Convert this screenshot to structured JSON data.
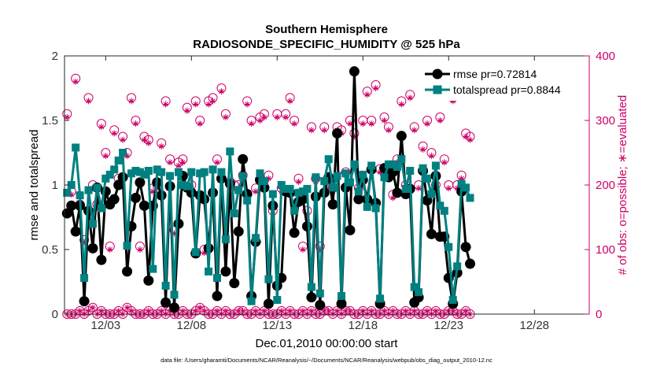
{
  "chart_data": {
    "type": "line",
    "title": "Southern Hemisphere",
    "subtitle": "RADIOSONDE_SPECIFIC_HUMIDITY @ 525 hPa",
    "xlabel": "Dec.01,2010 00:00:00 start",
    "ylabel": "rmse and totalspread",
    "y2label": "# of obs: o=possible; ∗=evaluated",
    "xlim": [
      0.6,
      31.2
    ],
    "ylim": [
      0,
      2
    ],
    "y2lim": [
      0,
      400
    ],
    "x_ticks": [
      3,
      8,
      13,
      18,
      23,
      28
    ],
    "x_tick_labels": [
      "12/03",
      "12/08",
      "12/13",
      "12/18",
      "12/23",
      "12/28"
    ],
    "y_ticks": [
      0,
      0.5,
      1,
      1.5,
      2
    ],
    "y_tick_labels": [
      "0",
      "0.5",
      "1",
      "1.5",
      "2"
    ],
    "y2_ticks": [
      0,
      100,
      200,
      300,
      400
    ],
    "y2_tick_labels": [
      "0",
      "100",
      "200",
      "300",
      "400"
    ],
    "grid": false,
    "legend_position": "top-right",
    "x_start": 0.75,
    "x_step": 0.25,
    "series": [
      {
        "name": "rmse pr=0.72814",
        "color": "#000000",
        "marker": "circle",
        "axis": "left",
        "values": [
          0.78,
          0.84,
          0.64,
          0.84,
          0.1,
          0.8,
          0.51,
          0.98,
          0.42,
          0.95,
          0.85,
          0.89,
          1.0,
          1.06,
          0.33,
          0.68,
          0.9,
          1.02,
          0.84,
          0.26,
          0.84,
          1.02,
          0.92,
          0.09,
          0.99,
          0.05,
          0.7,
          1.07,
          0.98,
          0.94,
          0.47,
          0.92,
          0.89,
          0.51,
          0.94,
          0.14,
          1.05,
          0.33,
          1.01,
          0.24,
          0.64,
          1.2,
          0.93,
          0.14,
          0.56,
          1.04,
          0.98,
          0.08,
          0.84,
          0.22,
          0.28,
          0.95,
          0.94,
          0.63,
          0.87,
          0.89,
          0.68,
          0.13,
          0.91,
          0.07,
          0.94,
          1.06,
          0.85,
          1.4,
          0.08,
          0.98,
          0.65,
          1.88,
          0.89,
          1.04,
          0.89,
          1.12,
          0.86,
          0.08,
          1.13,
          1.06,
          1.1,
          0.94,
          1.38,
          0.93,
          0.97,
          0.09,
          0.13,
          1.11,
          0.88,
          0.62,
          1.07,
          0.6,
          0.6,
          0.28,
          0.08,
          0.32,
          0.95,
          0.52,
          0.39
        ]
      },
      {
        "name": "totalspread pr=0.8844",
        "color": "#008080",
        "marker": "square",
        "axis": "left",
        "values": [
          0.94,
          1.0,
          1.29,
          0.92,
          0.28,
          0.96,
          0.7,
          0.98,
          0.82,
          1.05,
          1.08,
          1.12,
          1.19,
          1.25,
          0.53,
          1.09,
          1.11,
          1.1,
          1.08,
          1.11,
          0.35,
          1.12,
          1.1,
          0.22,
          1.07,
          0.15,
          1.1,
          1.0,
          0.99,
          1.1,
          0.48,
          1.09,
          1.1,
          0.33,
          1.12,
          0.28,
          1.1,
          0.58,
          1.26,
          0.78,
          0.96,
          1.07,
          0.88,
          0.1,
          0.59,
          1.09,
          1.03,
          0.27,
          0.93,
          0.11,
          1.0,
          0.97,
          0.97,
          0.8,
          0.94,
          0.95,
          0.97,
          0.21,
          1.06,
          0.16,
          1.03,
          1.2,
          0.98,
          1.07,
          0.14,
          1.09,
          1.02,
          1.16,
          0.95,
          1.08,
          0.83,
          1.15,
          0.82,
          0.12,
          1.06,
          1.16,
          1.16,
          1.14,
          1.2,
          0.97,
          1.11,
          0.21,
          0.17,
          1.13,
          1.05,
          0.93,
          1.15,
          0.84,
          0.8,
          0.52,
          0.11,
          0.37,
          1.01,
          0.98,
          0.9
        ]
      },
      {
        "name": "possible",
        "color": "#cc0066",
        "marker": "circle-open",
        "axis": "right",
        "values": [
          310,
          190,
          365,
          170,
          115,
          335,
          200,
          170,
          295,
          250,
          105,
          285,
          210,
          275,
          250,
          335,
          300,
          105,
          275,
          270,
          195,
          200,
          265,
          330,
          240,
          130,
          235,
          240,
          320,
          200,
          330,
          300,
          100,
          330,
          335,
          240,
          350,
          310,
          205,
          200,
          200,
          215,
          330,
          300,
          195,
          305,
          310,
          215,
          160,
          310,
          195,
          310,
          335,
          300,
          210,
          105,
          160,
          290,
          210,
          105,
          290,
          200,
          195,
          290,
          285,
          220,
          300,
          280,
          195,
          300,
          345,
          300,
          355,
          225,
          305,
          290,
          185,
          240,
          330,
          200,
          340,
          290,
          200,
          260,
          300,
          250,
          200,
          305,
          240,
          200,
          335,
          200,
          215,
          280,
          275
        ]
      },
      {
        "name": "evaluated",
        "color": "#cc0066",
        "marker": "asterisk",
        "axis": "right",
        "values": [
          305,
          185,
          360,
          165,
          112,
          330,
          195,
          165,
          290,
          245,
          100,
          280,
          205,
          270,
          245,
          330,
          295,
          100,
          270,
          265,
          190,
          195,
          260,
          325,
          235,
          125,
          230,
          235,
          315,
          195,
          325,
          295,
          95,
          325,
          330,
          235,
          345,
          305,
          200,
          195,
          195,
          210,
          325,
          295,
          190,
          300,
          305,
          210,
          155,
          305,
          190,
          305,
          330,
          295,
          205,
          100,
          155,
          285,
          205,
          100,
          285,
          195,
          190,
          285,
          280,
          215,
          295,
          275,
          190,
          295,
          340,
          295,
          350,
          220,
          300,
          285,
          180,
          235,
          325,
          195,
          335,
          285,
          195,
          255,
          295,
          245,
          195,
          300,
          235,
          195,
          330,
          195,
          210,
          275,
          270
        ]
      },
      {
        "name": "possible-low",
        "color": "#cc0066",
        "marker": "circle-open",
        "axis": "right",
        "values": [
          0,
          0,
          0,
          5,
          0,
          5,
          10,
          0,
          5,
          0,
          0,
          0,
          5,
          0,
          10,
          5,
          0,
          0,
          0,
          5,
          0,
          0,
          5,
          0,
          5,
          0,
          0,
          5,
          0,
          0,
          5,
          10,
          5,
          0,
          0,
          5,
          0,
          5,
          0,
          0,
          5,
          5,
          0,
          0,
          5,
          0,
          5,
          0,
          0,
          0,
          5,
          0,
          5,
          0,
          0,
          5,
          0,
          5,
          0,
          0,
          5,
          5,
          0,
          5,
          0,
          5,
          5,
          0,
          0,
          5,
          0,
          5,
          0,
          0,
          5,
          0,
          5,
          0,
          0,
          5,
          0,
          5,
          0,
          0,
          5,
          0,
          5,
          0,
          0,
          5,
          5,
          0,
          0,
          5,
          0
        ]
      },
      {
        "name": "evaluated-low",
        "color": "#cc0066",
        "marker": "asterisk",
        "axis": "right",
        "values": [
          0,
          0,
          0,
          5,
          0,
          5,
          10,
          0,
          5,
          0,
          0,
          0,
          5,
          0,
          10,
          5,
          0,
          0,
          0,
          5,
          0,
          0,
          5,
          0,
          5,
          0,
          0,
          5,
          0,
          0,
          5,
          10,
          5,
          0,
          0,
          5,
          0,
          5,
          0,
          0,
          5,
          5,
          0,
          0,
          5,
          0,
          5,
          0,
          0,
          0,
          5,
          0,
          5,
          0,
          0,
          5,
          0,
          5,
          0,
          0,
          5,
          5,
          0,
          5,
          0,
          5,
          5,
          0,
          0,
          5,
          0,
          5,
          0,
          0,
          5,
          0,
          5,
          0,
          0,
          5,
          0,
          5,
          0,
          0,
          5,
          0,
          5,
          0,
          0,
          5,
          5,
          0,
          0,
          5,
          0
        ]
      }
    ]
  },
  "legend": {
    "rmse_label": "rmse pr=0.72814",
    "spread_label": "totalspread pr=0.8844"
  },
  "footnote": "data file: /Users/gharamti/Documents/NCAR/Reanalysis/~/Documents/NCAR/Reanalysis/webpub/obs_diag_output_2010-12.nc"
}
